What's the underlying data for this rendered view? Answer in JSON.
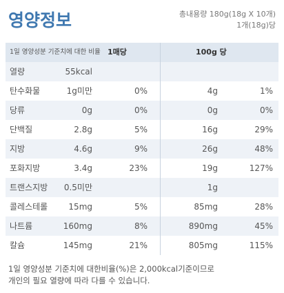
{
  "header": {
    "title": "영양정보",
    "total": "총내용량 180g(18g X 10개)",
    "serving": "1개(18g)당"
  },
  "table": {
    "head": {
      "daily_ratio": "1일 영양성분 기준치에 대한 비율",
      "per_serving": "1매당",
      "per_100g": "100g 당"
    },
    "rows": [
      {
        "name": "열량",
        "per_serving": "55kcal"
      },
      {
        "name": "탄수화물",
        "per_serving": "1g미만",
        "per_serving_pct": "0%",
        "per_100g": "4g",
        "per_100g_pct": "1%"
      },
      {
        "name": "당류",
        "per_serving": "0g",
        "per_serving_pct": "0%",
        "per_100g": "0g",
        "per_100g_pct": "0%"
      },
      {
        "name": "단백질",
        "per_serving": "2.8g",
        "per_serving_pct": "5%",
        "per_100g": "16g",
        "per_100g_pct": "29%"
      },
      {
        "name": "지방",
        "per_serving": "4.6g",
        "per_serving_pct": "9%",
        "per_100g": "26g",
        "per_100g_pct": "48%"
      },
      {
        "name": "포화지방",
        "per_serving": "3.4g",
        "per_serving_pct": "23%",
        "per_100g": "19g",
        "per_100g_pct": "127%"
      },
      {
        "name": "트랜스지방",
        "per_serving": "0.5미만",
        "per_100g": "1g"
      },
      {
        "name": "콜레스테롤",
        "per_serving": "15mg",
        "per_serving_pct": "5%",
        "per_100g": "85mg",
        "per_100g_pct": "28%"
      },
      {
        "name": "나트륨",
        "per_serving": "160mg",
        "per_serving_pct": "8%",
        "per_100g": "890mg",
        "per_100g_pct": "45%"
      },
      {
        "name": "칼슘",
        "per_serving": "145mg",
        "per_serving_pct": "21%",
        "per_100g": "805mg",
        "per_100g_pct": "115%"
      }
    ]
  },
  "footer": {
    "line1": "1일 영양성분 기준치에 대한비율(%)은 2,000kcal기준이므로",
    "line2": "개인의 필요 열량에 따라 다를 수 있습니다."
  }
}
